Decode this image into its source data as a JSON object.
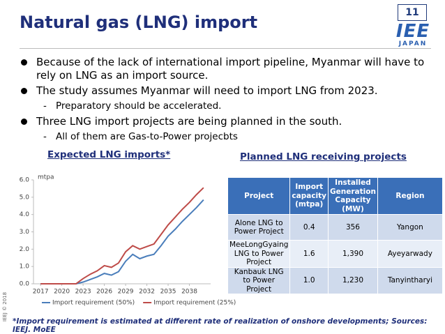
{
  "page_number": "11",
  "title": "Natural gas (LNG) import",
  "logo": {
    "main": "IEE",
    "sub": "JAPAN"
  },
  "bullets": [
    {
      "text": "Because of the lack of international import pipeline, Myanmar will have to rely on LNG as an import source.",
      "sub": []
    },
    {
      "text": "The study assumes Myanmar will need to import LNG from 2023.",
      "sub": [
        "Preparatory should be accelerated."
      ]
    },
    {
      "text": "Three LNG import projects are being planned in the south.",
      "sub": [
        "All of them are Gas-to-Power projecbts"
      ]
    }
  ],
  "chart_heading": "Expected LNG imports*",
  "chart_data": {
    "type": "line",
    "y_unit": "mtpa",
    "x": [
      2017,
      2018,
      2019,
      2020,
      2021,
      2022,
      2023,
      2024,
      2025,
      2026,
      2027,
      2028,
      2029,
      2030,
      2031,
      2032,
      2033,
      2034,
      2035,
      2036,
      2037,
      2038,
      2039,
      2040
    ],
    "series": [
      {
        "name": "Import requirement (50%)",
        "color": "#4a7ebb",
        "values": [
          0,
          0,
          0,
          0,
          0,
          0,
          0.1,
          0.25,
          0.4,
          0.6,
          0.5,
          0.7,
          1.3,
          1.7,
          1.45,
          1.6,
          1.7,
          2.2,
          2.75,
          3.15,
          3.6,
          4.0,
          4.4,
          4.85
        ]
      },
      {
        "name": "Import requirement (25%)",
        "color": "#be4b48",
        "values": [
          0,
          0,
          0,
          0,
          0,
          0,
          0.3,
          0.55,
          0.75,
          1.05,
          0.95,
          1.2,
          1.85,
          2.2,
          2.0,
          2.15,
          2.3,
          2.85,
          3.4,
          3.85,
          4.3,
          4.7,
          5.15,
          5.55
        ]
      }
    ],
    "xlim": [
      2016,
      2041
    ],
    "xticks": [
      2017,
      2020,
      2023,
      2026,
      2029,
      2032,
      2035,
      2038
    ],
    "ylim": [
      0,
      6
    ],
    "yticks": [
      {
        "value": 0,
        "label": "0.0"
      },
      {
        "value": 1,
        "label": "1.0"
      },
      {
        "value": 2,
        "label": "2.0"
      },
      {
        "value": 3,
        "label": "3.0"
      },
      {
        "value": 4,
        "label": "4.0"
      },
      {
        "value": 5,
        "label": "5.0"
      },
      {
        "value": 6,
        "label": "6.0"
      }
    ],
    "grid": false,
    "legend": "bottom"
  },
  "table_heading": "Planned LNG receiving projects",
  "table": {
    "header": [
      "Project",
      "Import capacity (mtpa)",
      "Installed Generation Capacity (MW)",
      "Region"
    ],
    "rows": [
      [
        "Alone LNG to Power Project",
        "0.4",
        "356",
        "Yangon"
      ],
      [
        "MeeLongGyaing LNG to Power Project",
        "1.6",
        "1,390",
        "Ayeyarwady"
      ],
      [
        "Kanbauk LNG to Power Project",
        "1.0",
        "1,230",
        "Tanyintharyi"
      ]
    ]
  },
  "footnote": "*Import requirement is estimated at different rate of realization of onshore developments; Sources: IEEJ. MoEE",
  "copyright": "IEEJ © 2018"
}
